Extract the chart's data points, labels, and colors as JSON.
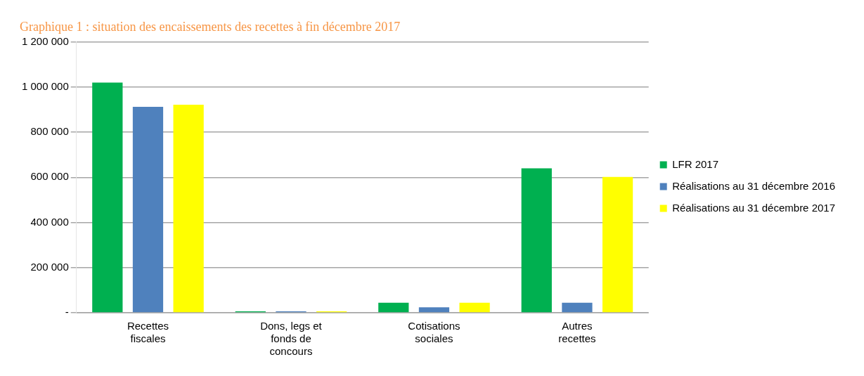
{
  "chart_data": {
    "type": "bar",
    "title": "Graphique 1 : situation des encaissements des recettes à fin décembre 2017",
    "categories": [
      "Recettes fiscales",
      "Dons, legs et fonds de concours",
      "Cotisations sociales",
      "Autres recettes"
    ],
    "series": [
      {
        "name": "LFR 2017",
        "color": "#00b050",
        "values": [
          1020000,
          6000,
          44000,
          640000
        ]
      },
      {
        "name": "Réalisations au 31 décembre 2016",
        "color": "#4f81bd",
        "values": [
          912000,
          6000,
          24000,
          44000
        ]
      },
      {
        "name": "Réalisations au 31 décembre 2017",
        "color": "#ffff00",
        "values": [
          922000,
          6000,
          44000,
          602000
        ]
      }
    ],
    "ylim": [
      0,
      1200000
    ],
    "yticks": [
      {
        "value": 0,
        "label": "-"
      },
      {
        "value": 200000,
        "label": "200 000"
      },
      {
        "value": 400000,
        "label": "400 000"
      },
      {
        "value": 600000,
        "label": "600 000"
      },
      {
        "value": 800000,
        "label": "800 000"
      },
      {
        "value": 1000000,
        "label": "1 000 000"
      },
      {
        "value": 1200000,
        "label": "1 200 000"
      }
    ],
    "grid": "y",
    "legend": "right"
  }
}
